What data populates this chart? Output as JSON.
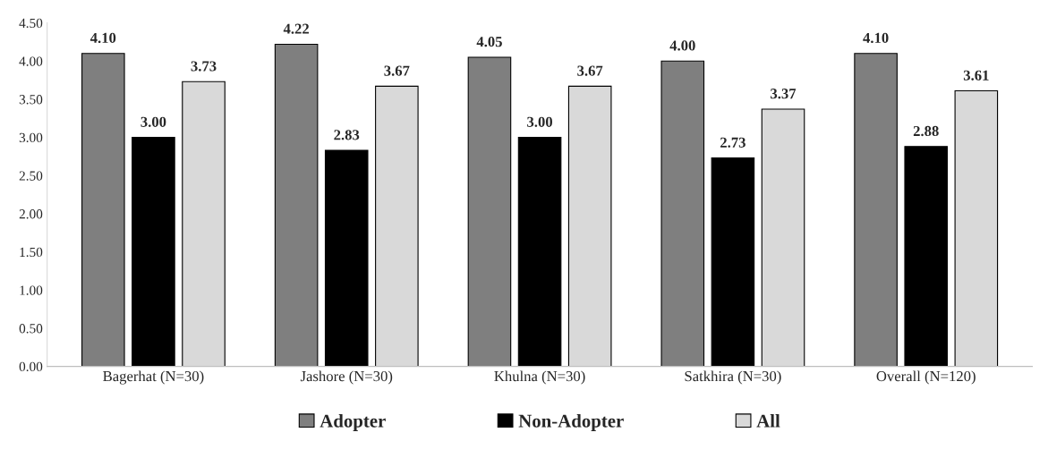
{
  "chart_data": {
    "type": "bar",
    "categories": [
      "Bagerhat (N=30)",
      "Jashore (N=30)",
      "Khulna (N=30)",
      "Satkhira (N=30)",
      "Overall (N=120)"
    ],
    "series": [
      {
        "name": "Adopter",
        "color": "#7f7f7f",
        "values": [
          4.1,
          4.22,
          4.05,
          4.0,
          4.1
        ],
        "value_labels": [
          "4.10",
          "4.22",
          "4.05",
          "4.00",
          "4.10"
        ]
      },
      {
        "name": "Non-Adopter",
        "color": "#000000",
        "values": [
          3.0,
          2.83,
          3.0,
          2.73,
          2.88
        ],
        "value_labels": [
          "3.00",
          "2.83",
          "3.00",
          "2.73",
          "2.88"
        ]
      },
      {
        "name": "All",
        "color": "#d9d9d9",
        "values": [
          3.73,
          3.67,
          3.67,
          3.37,
          3.61
        ],
        "value_labels": [
          "3.73",
          "3.67",
          "3.67",
          "3.37",
          "3.61"
        ]
      }
    ],
    "ylim": [
      0,
      4.5
    ],
    "yticks": [
      {
        "value": 0,
        "label": "0.00"
      },
      {
        "value": 0.5,
        "label": "0.50"
      },
      {
        "value": 1,
        "label": "1.00"
      },
      {
        "value": 1.5,
        "label": "1.50"
      },
      {
        "value": 2,
        "label": "2.00"
      },
      {
        "value": 2.5,
        "label": "2.50"
      },
      {
        "value": 3,
        "label": "3.00"
      },
      {
        "value": 3.5,
        "label": "3.50"
      },
      {
        "value": 4,
        "label": "4.00"
      },
      {
        "value": 4.5,
        "label": "4.50"
      }
    ],
    "grid": false,
    "legend": "bottom"
  }
}
